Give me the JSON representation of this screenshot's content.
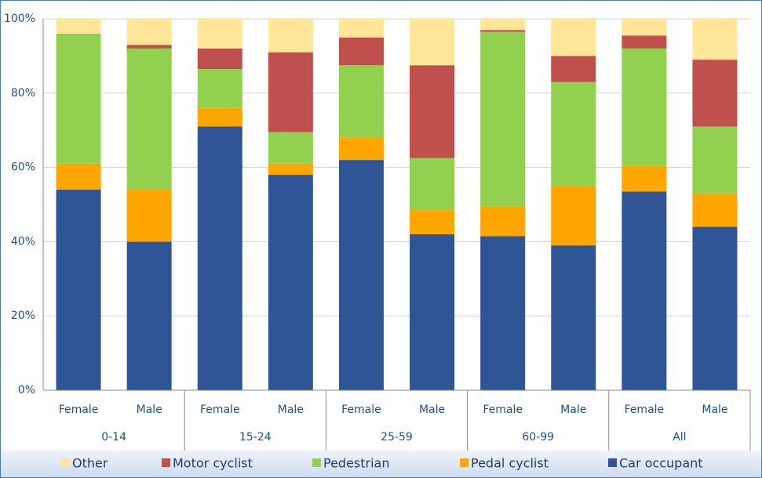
{
  "chart_data": {
    "type": "stacked_bar",
    "categories": [
      "Female",
      "Male",
      "Female",
      "Male",
      "Female",
      "Male",
      "Female",
      "Male",
      "Female",
      "Male"
    ],
    "groups": [
      "0-14",
      "15-24",
      "25-59",
      "60-99",
      "All"
    ],
    "series": [
      {
        "name": "Other",
        "color": "#ffe699",
        "values": [
          4,
          7,
          8,
          9,
          5,
          12.5,
          3,
          10,
          4.5,
          11
        ]
      },
      {
        "name": "Motor cyclist",
        "color": "#c0504d",
        "values": [
          0,
          1,
          5.5,
          21.5,
          7.5,
          25,
          0.5,
          7,
          3.5,
          18
        ]
      },
      {
        "name": "Pedestrian",
        "color": "#92d050",
        "values": [
          35,
          38,
          10.5,
          8.5,
          19.5,
          14,
          47,
          28,
          31.5,
          18
        ]
      },
      {
        "name": "Pedal cyclist",
        "color": "#ffa500",
        "values": [
          7,
          14,
          5,
          3,
          6,
          6.5,
          8,
          16,
          7,
          9
        ]
      },
      {
        "name": "Car occupant",
        "color": "#2f5597",
        "values": [
          54,
          40,
          71,
          58,
          62,
          42,
          41.5,
          39,
          53.5,
          44
        ]
      }
    ],
    "ylim": [
      0,
      100
    ],
    "yticks": [
      {
        "value": 0,
        "label": "0%"
      },
      {
        "value": 20,
        "label": "20%"
      },
      {
        "value": 40,
        "label": "40%"
      },
      {
        "value": 60,
        "label": "60%"
      },
      {
        "value": 80,
        "label": "80%"
      },
      {
        "value": 100,
        "label": "100%"
      }
    ],
    "grid": true
  }
}
